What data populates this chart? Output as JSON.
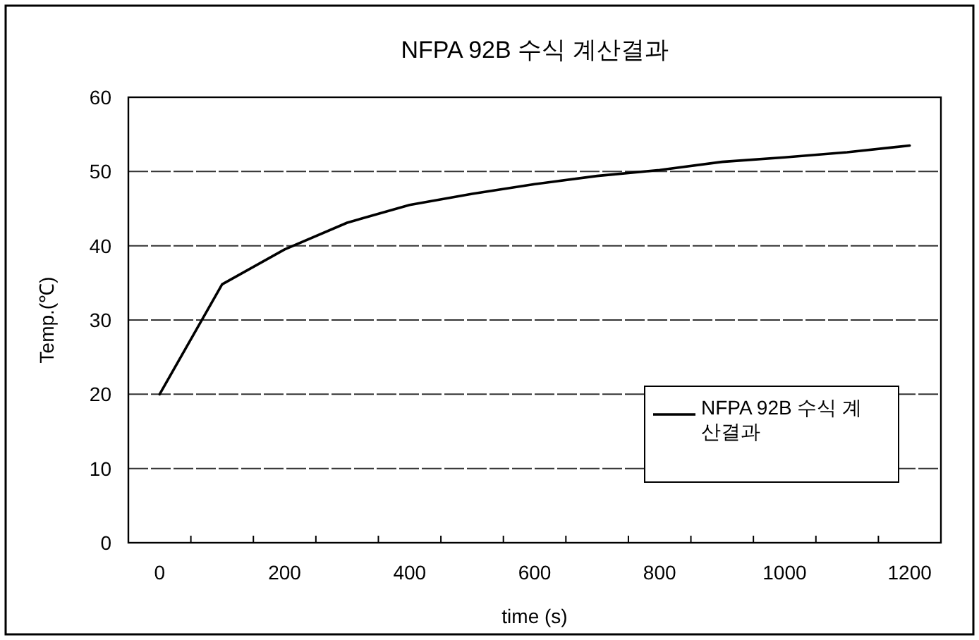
{
  "chart_data": {
    "type": "line",
    "title": "NFPA 92B 수식 계산결과",
    "xlabel": "time (s)",
    "ylabel": "Temp.(℃)",
    "x": [
      0,
      100,
      200,
      300,
      400,
      500,
      600,
      700,
      800,
      900,
      1000,
      1100,
      1200
    ],
    "series": [
      {
        "name": "NFPA 92B 수식 계산결과",
        "color": "#000000",
        "values": [
          20,
          34.8,
          39.5,
          43.1,
          45.5,
          47,
          48.3,
          49.4,
          50.2,
          51.3,
          51.9,
          52.6,
          53.5
        ]
      }
    ],
    "xlim": [
      -50,
      1250
    ],
    "xticks": [
      0,
      {
        "value": 50,
        "label": null
      },
      {
        "value": 150,
        "label": null
      },
      200,
      {
        "value": 250,
        "label": null
      },
      {
        "value": 350,
        "label": null
      },
      400,
      {
        "value": 450,
        "label": null
      },
      {
        "value": 550,
        "label": null
      },
      600,
      {
        "value": 650,
        "label": null
      },
      {
        "value": 750,
        "label": null
      },
      800,
      {
        "value": 850,
        "label": null
      },
      {
        "value": 950,
        "label": null
      },
      1000,
      {
        "value": 1050,
        "label": null
      },
      {
        "value": 1150,
        "label": null
      },
      1200
    ],
    "ylim": [
      0,
      60
    ],
    "yticks": [
      0,
      10,
      20,
      30,
      40,
      50,
      60
    ],
    "grid": "y",
    "legend": "bottom right",
    "marker": "none",
    "line_style": "solid"
  }
}
